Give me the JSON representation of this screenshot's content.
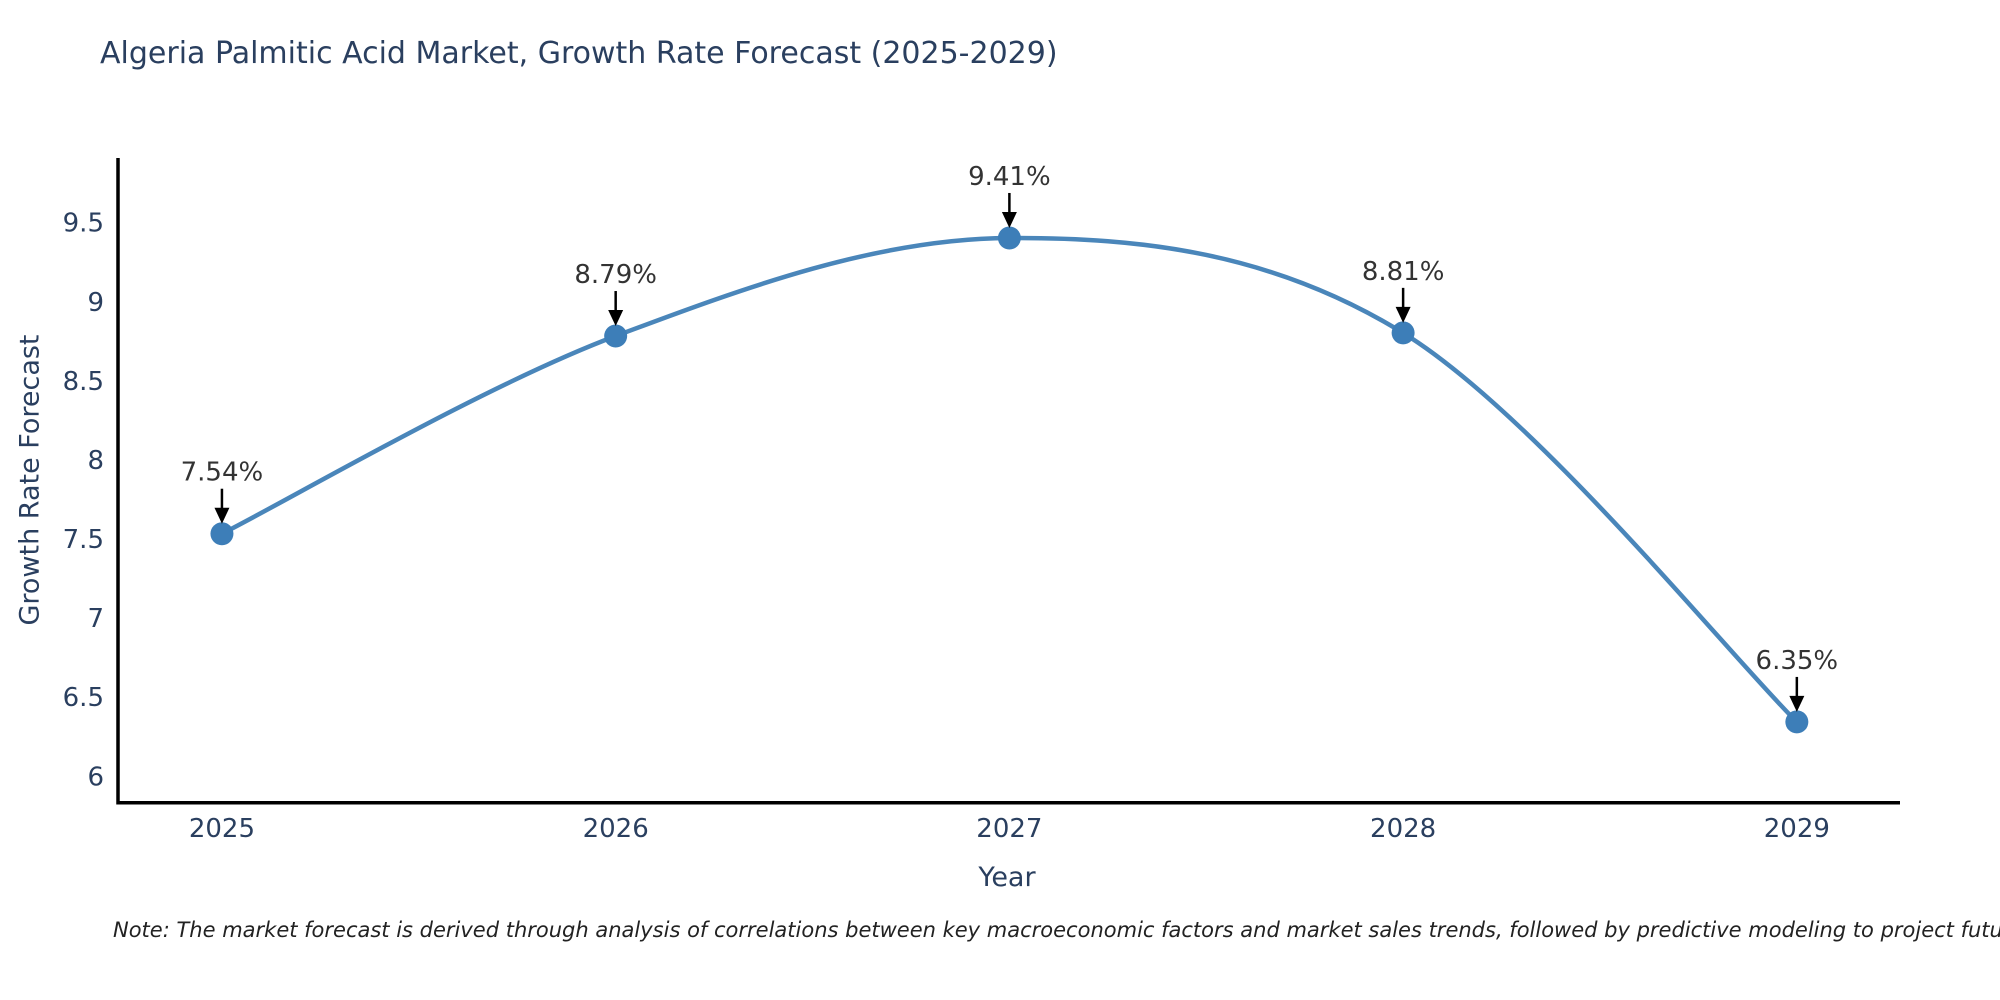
{
  "chart": {
    "title": "Algeria Palmitic Acid Market, Growth Rate Forecast (2025-2029)",
    "note": "Note: The market forecast is derived through analysis of correlations between key macroeconomic factors and market sales trends, followed by predictive modeling to project future sales"
  },
  "chart_data": {
    "type": "line",
    "title": "Algeria Palmitic Acid Market, Growth Rate Forecast (2025-2029)",
    "xlabel": "Year",
    "ylabel": "Growth Rate Forecast",
    "x": [
      2025,
      2026,
      2027,
      2028,
      2029
    ],
    "values": [
      7.54,
      8.79,
      9.41,
      8.81,
      6.35
    ],
    "point_labels": [
      "7.54%",
      "8.79%",
      "9.41%",
      "8.81%",
      "6.35%"
    ],
    "xticks": [
      "2025",
      "2026",
      "2027",
      "2028",
      "2029"
    ],
    "yticks": [
      6,
      6.5,
      7,
      7.5,
      8,
      8.5,
      9,
      9.5
    ],
    "xlim": [
      2024.736,
      2029.262
    ],
    "ylim": [
      5.85,
      9.903
    ],
    "grid": false,
    "legend_position": "none",
    "line_shape": "spline",
    "colors": {
      "line": "#4a86ba",
      "marker": "#3d7eb8",
      "axis": "#000000",
      "tick_text": "#2a3f5f",
      "annotation_text": "#333333",
      "annotation_arrow": "#000000",
      "background": "#ffffff"
    }
  }
}
